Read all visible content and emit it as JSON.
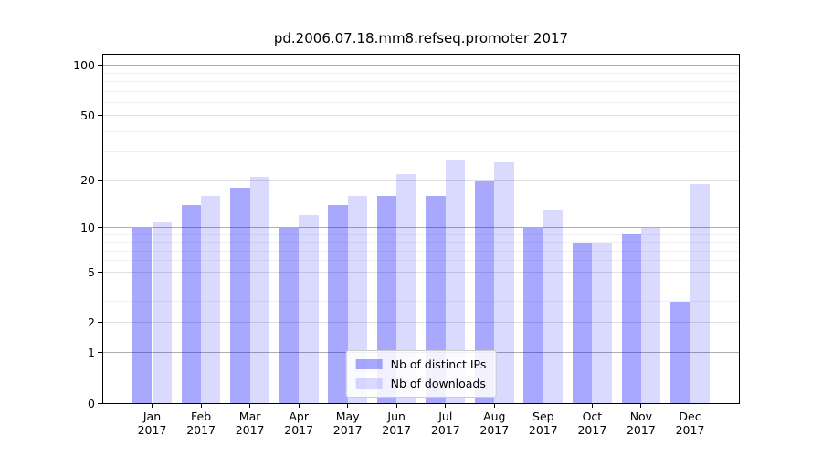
{
  "chart_data": {
    "type": "bar",
    "title": "pd.2006.07.18.mm8.refseq.promoter 2017",
    "categories": [
      "Jan",
      "Feb",
      "Mar",
      "Apr",
      "May",
      "Jun",
      "Jul",
      "Aug",
      "Sep",
      "Oct",
      "Nov",
      "Dec"
    ],
    "category_year_line": "2017",
    "series": [
      {
        "name": "Nb of distinct IPs",
        "color": "#0000ff",
        "alpha": 0.34,
        "values": [
          10,
          14,
          18,
          10,
          14,
          16,
          16,
          20,
          10,
          8,
          9,
          3
        ]
      },
      {
        "name": "Nb of downloads",
        "color": "#0000ff",
        "alpha": 0.145,
        "values": [
          11,
          16,
          21,
          12,
          16,
          22,
          27,
          26,
          13,
          8,
          10,
          19
        ]
      }
    ],
    "xlabel": "",
    "ylabel": "",
    "y_scale": "log10(1+v)",
    "ylim": [
      0,
      115
    ],
    "y_major_ticks": [
      100,
      50,
      20,
      10,
      5,
      2,
      1,
      0
    ],
    "y_minor_ticks": [
      3,
      4,
      6,
      7,
      8,
      9,
      30,
      40,
      60,
      70,
      80,
      90
    ],
    "grid": {
      "on": true,
      "strong_lines": [
        1,
        10,
        100
      ],
      "strong_color": "#aeaeae",
      "mid_color": "#e0e0e0",
      "minor_color": "#f1f1f1"
    },
    "legend": {
      "position": "lower center",
      "entries": [
        "Nb of distinct IPs",
        "Nb of downloads"
      ]
    }
  }
}
